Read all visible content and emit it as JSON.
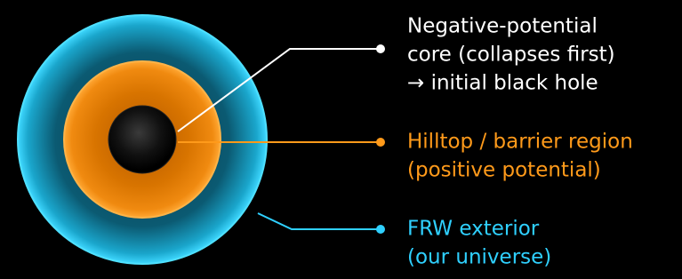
{
  "labels": [
    {
      "lines": [
        "Negative-potential",
        "core (collapses first)",
        "→ initial black hole"
      ]
    },
    {
      "lines": [
        "Hilltop / barrier region",
        "(positive potential)"
      ]
    },
    {
      "lines": [
        "FRW exterior",
        "(our universe)"
      ]
    }
  ]
}
